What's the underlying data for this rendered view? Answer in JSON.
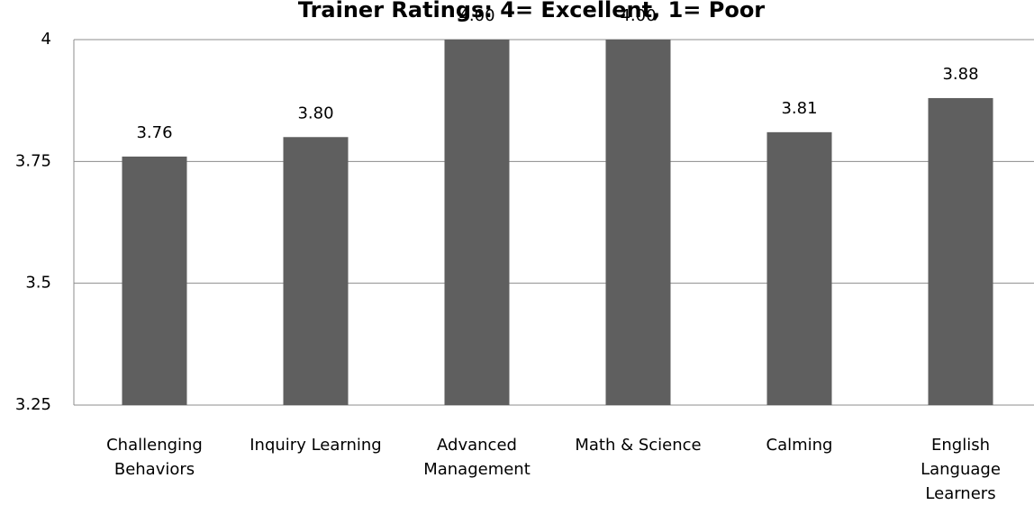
{
  "chart_data": {
    "type": "bar",
    "title": "Trainer Ratings:  4= Excellent, 1= Poor",
    "categories": [
      "Challenging Behaviors",
      "Inquiry Learning",
      "Advanced Management",
      "Math & Science",
      "Calming",
      "English Language Learners"
    ],
    "values": [
      3.76,
      3.8,
      4.0,
      4.0,
      3.81,
      3.88
    ],
    "value_labels": [
      "3.76",
      "3.80",
      "4.00",
      "4.00",
      "3.81",
      "3.88"
    ],
    "color": "#5f5f5f",
    "ylim": [
      3.25,
      4
    ],
    "yticks": [
      3.25,
      3.5,
      3.75,
      4
    ],
    "grid": true
  }
}
